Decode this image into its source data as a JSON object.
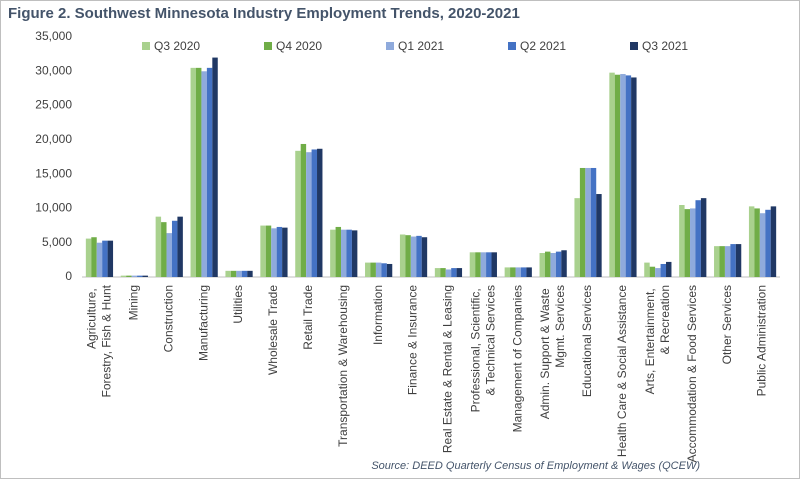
{
  "chart_data": {
    "type": "bar",
    "title": "Figure 2. Southwest Minnesota Industry Employment Trends, 2020-2021",
    "source": "Source: DEED Quarterly Census of Employment & Wages (QCEW)",
    "categories": [
      "Agriculture, Forestry, Fish & Hunt",
      "Mining",
      "Construction",
      "Manufacturing",
      "Utilities",
      "Wholesale Trade",
      "Retail Trade",
      "Transportation & Warehousing",
      "Information",
      "Finance & Insurance",
      "Real Estate & Rental & Leasing",
      "Professional, Scientific, & Technical Services",
      "Management of Companies",
      "Admin. Support & Waste Mgmt. Services",
      "Educational Services",
      "Health Care & Social Assistance",
      "Arts, Entertainment, & Recreation",
      "Accommodation & Food Services",
      "Other Services",
      "Public Administration"
    ],
    "series": [
      {
        "name": "Q3 2020",
        "color": "#a9d18e",
        "values": [
          5600,
          200,
          8800,
          30500,
          900,
          7500,
          18400,
          6900,
          2100,
          6200,
          1300,
          3600,
          1400,
          3500,
          11500,
          29800,
          2100,
          10500,
          4500,
          10300
        ]
      },
      {
        "name": "Q4 2020",
        "color": "#70ad47",
        "values": [
          5800,
          200,
          8000,
          30500,
          900,
          7500,
          19400,
          7300,
          2100,
          6100,
          1300,
          3600,
          1400,
          3700,
          15900,
          29500,
          1500,
          9900,
          4500,
          10000
        ]
      },
      {
        "name": "Q1 2021",
        "color": "#8faadc",
        "values": [
          5000,
          200,
          6400,
          30000,
          900,
          7100,
          18200,
          6900,
          2100,
          5900,
          1100,
          3600,
          1400,
          3500,
          15900,
          29600,
          1300,
          10000,
          4500,
          9300
        ]
      },
      {
        "name": "Q2 2021",
        "color": "#4472c4",
        "values": [
          5300,
          200,
          8200,
          30500,
          900,
          7300,
          18600,
          6900,
          2000,
          6000,
          1300,
          3600,
          1400,
          3700,
          15900,
          29400,
          1900,
          11200,
          4800,
          9800
        ]
      },
      {
        "name": "Q3 2021",
        "color": "#203864",
        "values": [
          5300,
          200,
          8800,
          32000,
          900,
          7200,
          18700,
          6800,
          1900,
          5800,
          1300,
          3600,
          1400,
          3900,
          12100,
          29100,
          2200,
          11500,
          4800,
          10300
        ]
      }
    ],
    "ylim": [
      0,
      35000
    ],
    "yticks": [
      0,
      {
        "value": 5000,
        "label": "5,000"
      },
      {
        "value": 10000,
        "label": "10,000"
      },
      {
        "value": 15000,
        "label": "15,000"
      },
      {
        "value": 20000,
        "label": "20,000"
      },
      {
        "value": 25000,
        "label": "25,000"
      },
      {
        "value": 30000,
        "label": "30,000"
      },
      {
        "value": 35000,
        "label": "35,000"
      }
    ],
    "grid": false
  }
}
